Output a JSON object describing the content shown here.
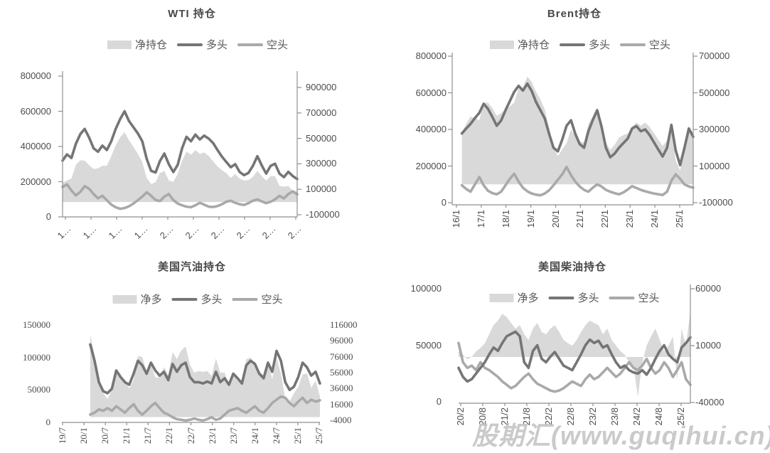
{
  "watermark": "股期汇(www.guqihui.cn)",
  "colors": {
    "net_fill": "#d9d9d9",
    "long_line": "#757575",
    "short_line": "#a9a9a9",
    "axis_line": "#8f8f8f",
    "tick_text": "#4c4c4c",
    "title_text": "#474747",
    "watermark_text": "#c3c3c3"
  },
  "chart_data": [
    {
      "type": "area+line",
      "title": "WTI 持仓",
      "legend": [
        "净持仓",
        "多头",
        "空头"
      ],
      "left_axis": {
        "min": 0,
        "max": 800000,
        "ticks": [
          0,
          200000,
          400000,
          600000,
          800000
        ]
      },
      "right_axis": {
        "min": -100000,
        "max": 900000,
        "ticks": [
          -100000,
          100000,
          300000,
          500000,
          700000,
          900000
        ]
      },
      "x_tick_labels": [
        "1…",
        "1…",
        "1…",
        "1…",
        "2…",
        "2…",
        "2…",
        "2…",
        "2…",
        "2…"
      ],
      "series": [
        {
          "name": "净持仓",
          "axis": "right",
          "style": "area",
          "values": [
            150000,
            170000,
            185000,
            293000,
            328000,
            325000,
            290000,
            260000,
            264000,
            285000,
            285000,
            360000,
            445000,
            509000,
            550000,
            485000,
            434000,
            380000,
            315000,
            190000,
            142000,
            156000,
            228000,
            245000,
            170000,
            159000,
            219000,
            324000,
            397000,
            372000,
            408000,
            378000,
            390000,
            363000,
            320000,
            280000,
            250000,
            226000,
            190000,
            220000,
            183000,
            169000,
            172000,
            198000,
            245000,
            204000,
            168000,
            204000,
            202000,
            126000,
            121000,
            126000,
            87000,
            87000
          ]
        },
        {
          "name": "多头",
          "axis": "left",
          "style": "line",
          "values": [
            320000,
            355000,
            335000,
            415000,
            470000,
            500000,
            450000,
            390000,
            370000,
            405000,
            380000,
            430000,
            500000,
            555000,
            600000,
            545000,
            510000,
            475000,
            430000,
            330000,
            262000,
            252000,
            318000,
            360000,
            300000,
            255000,
            295000,
            390000,
            455000,
            430000,
            468000,
            440000,
            462000,
            445000,
            420000,
            380000,
            342000,
            312000,
            282000,
            300000,
            255000,
            237000,
            250000,
            290000,
            345000,
            292000,
            246000,
            290000,
            302000,
            246000,
            226000,
            256000,
            232000,
            215000
          ]
        },
        {
          "name": "空头",
          "axis": "left",
          "style": "line",
          "values": [
            170000,
            185000,
            150000,
            122000,
            142000,
            175000,
            160000,
            130000,
            106000,
            120000,
            95000,
            70000,
            55000,
            46000,
            50000,
            60000,
            76000,
            95000,
            115000,
            140000,
            120000,
            96000,
            90000,
            115000,
            130000,
            96000,
            76000,
            66000,
            58000,
            55000,
            66000,
            80000,
            70000,
            58000,
            56000,
            62000,
            72000,
            86000,
            92000,
            80000,
            72000,
            68000,
            78000,
            92000,
            100000,
            88000,
            78000,
            86000,
            100000,
            120000,
            105000,
            130000,
            145000,
            128000
          ]
        }
      ]
    },
    {
      "type": "area+line",
      "title": "Brent持仓",
      "legend": [
        "净持仓",
        "多头",
        "空头"
      ],
      "left_axis": {
        "min": 0,
        "max": 800000,
        "ticks": [
          0,
          200000,
          400000,
          600000,
          800000
        ]
      },
      "right_axis": {
        "min": -100000,
        "max": 700000,
        "ticks": [
          -100000,
          100000,
          300000,
          500000,
          700000
        ]
      },
      "x_tick_labels": [
        "16/1",
        "17/1",
        "18/1",
        "19/1",
        "20/1",
        "21/1",
        "22/1",
        "23/1",
        "24/1",
        "25/1"
      ],
      "series": [
        {
          "name": "净持仓",
          "axis": "right",
          "style": "area",
          "values": [
            283000,
            330000,
            370000,
            362000,
            350000,
            445000,
            447000,
            416000,
            374000,
            388000,
            410000,
            425000,
            447000,
            523000,
            530000,
            588000,
            560000,
            506000,
            465000,
            410000,
            307000,
            205000,
            155000,
            190000,
            225000,
            300000,
            260000,
            232000,
            230000,
            330000,
            370000,
            405000,
            327000,
            230000,
            188000,
            216000,
            254000,
            269000,
            278000,
            315000,
            338000,
            320000,
            338000,
            314000,
            280000,
            244000,
            210000,
            240000,
            305000,
            130000,
            75000,
            200000,
            317000,
            278000
          ]
        },
        {
          "name": "多头",
          "axis": "left",
          "style": "line",
          "values": [
            378000,
            405000,
            430000,
            462000,
            490000,
            540000,
            512000,
            468000,
            420000,
            448000,
            505000,
            555000,
            605000,
            638000,
            612000,
            650000,
            610000,
            550000,
            505000,
            460000,
            375000,
            300000,
            280000,
            345000,
            420000,
            450000,
            375000,
            320000,
            300000,
            390000,
            452000,
            505000,
            415000,
            300000,
            248000,
            268000,
            300000,
            325000,
            350000,
            405000,
            418000,
            390000,
            400000,
            370000,
            330000,
            290000,
            252000,
            300000,
            425000,
            285000,
            205000,
            300000,
            405000,
            360000
          ]
        },
        {
          "name": "空头",
          "axis": "left",
          "style": "line",
          "values": [
            95000,
            75000,
            60000,
            100000,
            140000,
            95000,
            65000,
            52000,
            46000,
            60000,
            95000,
            130000,
            158000,
            115000,
            82000,
            62000,
            50000,
            44000,
            40000,
            50000,
            68000,
            95000,
            125000,
            155000,
            195000,
            150000,
            115000,
            88000,
            70000,
            60000,
            82000,
            100000,
            88000,
            70000,
            60000,
            52000,
            46000,
            56000,
            72000,
            90000,
            80000,
            70000,
            62000,
            56000,
            50000,
            46000,
            42000,
            60000,
            120000,
            155000,
            130000,
            100000,
            88000,
            82000
          ]
        }
      ]
    },
    {
      "type": "area+line",
      "title": "美国汽油持仓",
      "legend": [
        "净多",
        "多头",
        "空头"
      ],
      "left_axis": {
        "min": 0,
        "max": 150000,
        "ticks": [
          0,
          50000,
          100000,
          150000
        ]
      },
      "right_axis": {
        "min": -4000,
        "max": 116000,
        "ticks": [
          -4000,
          16000,
          36000,
          56000,
          76000,
          96000,
          116000
        ]
      },
      "x_tick_labels": [
        "19/7",
        "20/1",
        "20/7",
        "21/1",
        "21/7",
        "22/1",
        "22/7",
        "23/1",
        "23/7",
        "24/1",
        "24/7",
        "25/1",
        "25/7"
      ],
      "series": [
        {
          "name": "净多",
          "axis": "right",
          "style": "area",
          "values": [
            104000,
            78000,
            42000,
            30000,
            23000,
            34000,
            55000,
            50000,
            47000,
            36000,
            47000,
            77000,
            76000,
            57000,
            67000,
            50000,
            50000,
            63000,
            53000,
            82000,
            73000,
            84000,
            89000,
            66000,
            56000,
            58000,
            57000,
            58000,
            52000,
            74000,
            56000,
            56000,
            40000,
            55000,
            46000,
            42000,
            73000,
            75000,
            65000,
            57000,
            53000,
            70000,
            48000,
            75000,
            55000,
            24000,
            20000,
            30000,
            38000,
            54000,
            55000,
            37000,
            46000,
            26000
          ]
        },
        {
          "name": "多头",
          "axis": "left",
          "style": "line",
          "values": [
            120000,
            95000,
            62000,
            48000,
            45000,
            52000,
            80000,
            70000,
            62000,
            58000,
            75000,
            95000,
            88000,
            75000,
            92000,
            80000,
            72000,
            78000,
            65000,
            90000,
            78000,
            88000,
            92000,
            70000,
            62000,
            62000,
            60000,
            63000,
            60000,
            78000,
            62000,
            68000,
            58000,
            75000,
            68000,
            60000,
            88000,
            95000,
            90000,
            75000,
            68000,
            92000,
            78000,
            110000,
            95000,
            62000,
            50000,
            55000,
            70000,
            92000,
            85000,
            72000,
            78000,
            60000
          ]
        },
        {
          "name": "空头",
          "axis": "left",
          "style": "line",
          "values": [
            12000,
            15000,
            20000,
            18000,
            22000,
            18000,
            25000,
            20000,
            15000,
            22000,
            28000,
            18000,
            12000,
            18000,
            25000,
            30000,
            22000,
            15000,
            12000,
            8000,
            5000,
            4000,
            3000,
            4000,
            6000,
            4000,
            3000,
            5000,
            8000,
            4000,
            6000,
            12000,
            18000,
            20000,
            22000,
            18000,
            15000,
            20000,
            25000,
            18000,
            15000,
            22000,
            30000,
            35000,
            40000,
            38000,
            30000,
            25000,
            32000,
            38000,
            30000,
            35000,
            32000,
            34000
          ]
        }
      ]
    },
    {
      "type": "area+line",
      "title": "美国柴油持仓",
      "legend": [
        "净多",
        "多头",
        "空头"
      ],
      "left_axis": {
        "min": 0,
        "max": 100000,
        "ticks": [
          0,
          50000,
          100000
        ]
      },
      "right_axis": {
        "min": -40000,
        "max": 60000,
        "ticks": [
          -40000,
          10000,
          60000
        ]
      },
      "x_tick_labels": [
        "20/2",
        "20/8",
        "21/2",
        "21/8",
        "22/2",
        "22/8",
        "23/2",
        "23/8",
        "24/2",
        "24/8",
        "25/2"
      ],
      "series": [
        {
          "name": "净多",
          "axis": "right",
          "style": "area",
          "values": [
            5000,
            2000,
            -2000,
            0,
            5000,
            8000,
            12000,
            20000,
            28000,
            32000,
            38000,
            35000,
            30000,
            25000,
            28000,
            20000,
            15000,
            25000,
            30000,
            22000,
            20000,
            25000,
            28000,
            22000,
            15000,
            12000,
            10000,
            15000,
            22000,
            28000,
            32000,
            30000,
            28000,
            20000,
            25000,
            15000,
            10000,
            5000,
            2000,
            -5000,
            -8000,
            -35000,
            -5000,
            10000,
            18000,
            25000,
            15000,
            5000,
            10000,
            18000,
            -20000,
            25000,
            10000,
            40000
          ]
        },
        {
          "name": "多头",
          "axis": "left",
          "style": "line",
          "values": [
            30000,
            22000,
            18000,
            20000,
            25000,
            30000,
            35000,
            42000,
            48000,
            45000,
            52000,
            58000,
            60000,
            62000,
            58000,
            35000,
            30000,
            45000,
            50000,
            38000,
            35000,
            40000,
            44000,
            38000,
            32000,
            30000,
            28000,
            35000,
            42000,
            50000,
            55000,
            52000,
            54000,
            48000,
            50000,
            42000,
            35000,
            30000,
            32000,
            28000,
            26000,
            25000,
            28000,
            24000,
            30000,
            38000,
            45000,
            50000,
            42000,
            38000,
            35000,
            48000,
            52000,
            57000
          ]
        },
        {
          "name": "空头",
          "axis": "left",
          "style": "line",
          "values": [
            52000,
            35000,
            30000,
            32000,
            28000,
            35000,
            30000,
            28000,
            25000,
            22000,
            18000,
            15000,
            12000,
            14000,
            18000,
            22000,
            25000,
            20000,
            16000,
            14000,
            12000,
            10000,
            9000,
            10000,
            12000,
            15000,
            18000,
            16000,
            14000,
            20000,
            24000,
            20000,
            22000,
            26000,
            30000,
            26000,
            22000,
            25000,
            30000,
            35000,
            30000,
            28000,
            32000,
            38000,
            30000,
            25000,
            28000,
            35000,
            30000,
            22000,
            28000,
            35000,
            20000,
            15000
          ]
        }
      ]
    }
  ]
}
